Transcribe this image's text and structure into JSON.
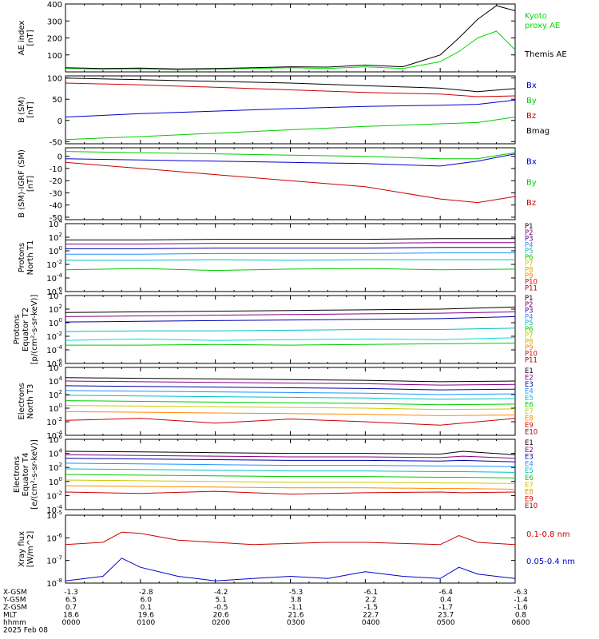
{
  "chart_data": [
    {
      "type": "line",
      "ylabel": "AE index [nT]",
      "ylim": [
        0,
        400
      ],
      "yticks": [
        100,
        200,
        300,
        400
      ],
      "x": [
        0,
        0.5,
        1,
        1.5,
        2,
        2.5,
        3,
        3.5,
        4,
        4.5,
        5,
        5.25,
        5.5,
        5.75,
        6
      ],
      "series": [
        {
          "name": "Kyoto proxy AE",
          "color": "#00dd00",
          "values": [
            20,
            15,
            18,
            12,
            15,
            20,
            25,
            20,
            30,
            20,
            60,
            120,
            200,
            240,
            130
          ]
        },
        {
          "name": "Themis AE",
          "color": "#000000",
          "values": [
            25,
            20,
            22,
            18,
            20,
            25,
            30,
            28,
            40,
            30,
            100,
            200,
            310,
            390,
            360
          ]
        }
      ]
    },
    {
      "type": "line",
      "ylabel": "B (SM) [nT]",
      "ylim": [
        -55,
        105
      ],
      "yticks": [
        -50,
        0,
        50,
        100
      ],
      "x": [
        0,
        1,
        2,
        3,
        4,
        5,
        5.5,
        6
      ],
      "series": [
        {
          "name": "Bx",
          "color": "#0000cc",
          "values": [
            8,
            16,
            22,
            28,
            33,
            36,
            38,
            48
          ]
        },
        {
          "name": "By",
          "color": "#00cc00",
          "values": [
            -45,
            -38,
            -30,
            -22,
            -14,
            -8,
            -5,
            8
          ]
        },
        {
          "name": "Bz",
          "color": "#cc0000",
          "values": [
            88,
            84,
            78,
            72,
            66,
            62,
            56,
            58
          ]
        },
        {
          "name": "Bmag",
          "color": "#000000",
          "values": [
            100,
            96,
            92,
            88,
            82,
            76,
            68,
            75
          ]
        }
      ]
    },
    {
      "type": "line",
      "ylabel": "B (SM)-IGRF (SM) [nT]",
      "ylim": [
        -52,
        7
      ],
      "yticks": [
        -50,
        -40,
        -30,
        -20,
        -10,
        0
      ],
      "x": [
        0,
        1,
        2,
        3,
        4,
        5,
        5.5,
        6
      ],
      "series": [
        {
          "name": "Bx",
          "color": "#0000cc",
          "values": [
            -2,
            -3,
            -4,
            -5,
            -6,
            -8,
            -4,
            2
          ]
        },
        {
          "name": "By",
          "color": "#00cc00",
          "values": [
            4,
            3,
            2,
            1,
            0,
            -2,
            -2,
            3
          ]
        },
        {
          "name": "Bz",
          "color": "#cc0000",
          "values": [
            -5,
            -10,
            -15,
            -20,
            -25,
            -35,
            -38,
            -33
          ]
        }
      ]
    },
    {
      "type": "line",
      "ylabel": "Protons North T1",
      "yscale": "log",
      "ylim_exp": [
        -6,
        4
      ],
      "ytick_exps": [
        -6,
        -4,
        -2,
        0,
        2,
        4
      ],
      "x": [
        0,
        1,
        2,
        3,
        4,
        5,
        6
      ],
      "series": [
        {
          "name": "P1",
          "color": "#000000",
          "exps": [
            1.6,
            1.6,
            1.7,
            1.7,
            1.7,
            1.8,
            1.8
          ]
        },
        {
          "name": "P2",
          "color": "#880088",
          "exps": [
            1.0,
            1.0,
            1.1,
            1.1,
            1.1,
            1.2,
            1.2
          ]
        },
        {
          "name": "P3",
          "color": "#0000aa",
          "exps": [
            0.3,
            0.3,
            0.4,
            0.4,
            0.4,
            0.5,
            0.5
          ]
        },
        {
          "name": "P4",
          "color": "#1e90ff",
          "exps": [
            -0.5,
            -0.5,
            -0.4,
            -0.4,
            -0.4,
            -0.3,
            -0.3
          ]
        },
        {
          "name": "P5",
          "color": "#00bfbf",
          "exps": [
            -1.4,
            -1.4,
            -1.3,
            -1.4,
            -1.3,
            -1.3,
            -1.3
          ]
        },
        {
          "name": "P6",
          "color": "#00cc00",
          "exps": [
            -2.8,
            -2.6,
            -2.9,
            -2.7,
            -2.6,
            -2.8,
            -2.7
          ]
        }
      ]
    },
    {
      "type": "line",
      "ylabel": "Protons Equator T2 [p/(cm²-s-sr-keV)]",
      "yscale": "log",
      "ylim_exp": [
        -6,
        4
      ],
      "ytick_exps": [
        -6,
        -4,
        -2,
        0,
        2,
        4
      ],
      "x": [
        0,
        1,
        2,
        3,
        4,
        5,
        6
      ],
      "series": [
        {
          "name": "P1",
          "color": "#000000",
          "exps": [
            1.5,
            1.6,
            1.7,
            1.8,
            1.9,
            2.0,
            2.3
          ]
        },
        {
          "name": "P2",
          "color": "#880088",
          "exps": [
            0.9,
            1.0,
            1.1,
            1.2,
            1.3,
            1.4,
            1.6
          ]
        },
        {
          "name": "P3",
          "color": "#0000aa",
          "exps": [
            0.1,
            0.2,
            0.3,
            0.4,
            0.5,
            0.6,
            0.9
          ]
        },
        {
          "name": "P4",
          "color": "#00bfbf",
          "exps": [
            -1.3,
            -1.2,
            -1.2,
            -1.1,
            -1.0,
            -1.0,
            -0.8
          ]
        },
        {
          "name": "P5",
          "color": "#00dddd",
          "exps": [
            -2.6,
            -2.4,
            -2.6,
            -2.5,
            -2.4,
            -2.5,
            -2.2
          ]
        },
        {
          "name": "P6",
          "color": "#00cc00",
          "exps": [
            -3.3,
            -3.3,
            -3.2,
            -3.3,
            -3.2,
            -3.1,
            -3.0
          ]
        }
      ]
    },
    {
      "type": "line",
      "ylabel": "Electrons North T3",
      "yscale": "log",
      "ylim_exp": [
        -4,
        6
      ],
      "ytick_exps": [
        -4,
        -2,
        0,
        2,
        4,
        6
      ],
      "x": [
        0,
        1,
        2,
        3,
        4,
        5,
        6
      ],
      "series": [
        {
          "name": "E1",
          "color": "#000000",
          "exps": [
            4.5,
            4.4,
            4.3,
            4.2,
            4.1,
            3.9,
            4.0
          ]
        },
        {
          "name": "E2",
          "color": "#880088",
          "exps": [
            4.0,
            3.9,
            3.8,
            3.7,
            3.6,
            3.4,
            3.5
          ]
        },
        {
          "name": "E3",
          "color": "#0000aa",
          "exps": [
            3.3,
            3.2,
            3.1,
            3.0,
            2.9,
            2.7,
            2.8
          ]
        },
        {
          "name": "E4",
          "color": "#1e90ff",
          "exps": [
            2.6,
            2.5,
            2.4,
            2.3,
            2.2,
            2.0,
            2.1
          ]
        },
        {
          "name": "E5",
          "color": "#00bfbf",
          "exps": [
            1.9,
            1.8,
            1.7,
            1.6,
            1.5,
            1.3,
            1.4
          ]
        },
        {
          "name": "E6",
          "color": "#00cc00",
          "exps": [
            1.1,
            1.0,
            0.9,
            0.8,
            0.7,
            0.5,
            0.6
          ]
        },
        {
          "name": "E7",
          "color": "#cccc00",
          "exps": [
            0.4,
            0.3,
            0.2,
            0.1,
            0.0,
            -0.2,
            -0.1
          ]
        },
        {
          "name": "E8",
          "color": "#ff8800",
          "exps": [
            -0.5,
            -0.6,
            -0.7,
            -0.8,
            -0.9,
            -1.1,
            -1.0
          ]
        },
        {
          "name": "E9",
          "color": "#cc0000",
          "exps": [
            -1.8,
            -1.5,
            -2.2,
            -1.6,
            -2.0,
            -2.5,
            -1.5
          ]
        }
      ]
    },
    {
      "type": "line",
      "ylabel": "Electrons Equator T4 [e/(cm²-s-sr-keV)]",
      "yscale": "log",
      "ylim_exp": [
        -4,
        6
      ],
      "ytick_exps": [
        -4,
        -2,
        0,
        2,
        4,
        6
      ],
      "x": [
        0,
        1,
        2,
        3,
        4,
        5,
        5.3,
        6
      ],
      "series": [
        {
          "name": "E1",
          "color": "#000000",
          "exps": [
            4.3,
            4.2,
            4.1,
            4.0,
            4.0,
            3.9,
            4.3,
            3.8
          ]
        },
        {
          "name": "E2",
          "color": "#880088",
          "exps": [
            3.8,
            3.7,
            3.6,
            3.5,
            3.5,
            3.4,
            3.6,
            3.3
          ]
        },
        {
          "name": "E3",
          "color": "#0000aa",
          "exps": [
            3.3,
            3.2,
            3.1,
            3.0,
            3.0,
            2.9,
            3.0,
            2.8
          ]
        },
        {
          "name": "E4",
          "color": "#1e90ff",
          "exps": [
            2.6,
            2.5,
            2.4,
            2.3,
            2.3,
            2.2,
            2.2,
            2.1
          ]
        },
        {
          "name": "E5",
          "color": "#00bfbf",
          "exps": [
            1.8,
            1.7,
            1.6,
            1.5,
            1.5,
            1.4,
            1.4,
            1.3
          ]
        },
        {
          "name": "E6",
          "color": "#00cc00",
          "exps": [
            1.0,
            0.9,
            0.8,
            0.7,
            0.7,
            0.6,
            0.6,
            0.5
          ]
        },
        {
          "name": "E7",
          "color": "#cccc00",
          "exps": [
            0.2,
            0.1,
            0.0,
            -0.1,
            -0.1,
            -0.2,
            -0.2,
            -0.3
          ]
        },
        {
          "name": "E8",
          "color": "#ff8800",
          "exps": [
            -0.6,
            -0.7,
            -0.8,
            -0.9,
            -0.9,
            -1.0,
            -1.0,
            -1.1
          ]
        },
        {
          "name": "E9",
          "color": "#cc0000",
          "exps": [
            -1.5,
            -1.7,
            -1.4,
            -1.8,
            -1.6,
            -1.5,
            -1.6,
            -1.5
          ]
        }
      ]
    },
    {
      "type": "line",
      "ylabel": "Xray flux [W/m^2]",
      "yscale": "log",
      "ylim_exp": [
        -8,
        -5
      ],
      "ytick_exps": [
        -8,
        -7,
        -6,
        -5
      ],
      "x": [
        0,
        0.5,
        0.75,
        1.0,
        1.5,
        2,
        2.5,
        3,
        3.5,
        4,
        4.5,
        5,
        5.25,
        5.5,
        6
      ],
      "series": [
        {
          "name": "0.1-0.8 nm",
          "color": "#cc0000",
          "exps": [
            -6.3,
            -6.2,
            -5.75,
            -5.8,
            -6.1,
            -6.2,
            -6.3,
            -6.25,
            -6.2,
            -6.2,
            -6.25,
            -6.3,
            -5.9,
            -6.2,
            -6.3
          ]
        },
        {
          "name": "0.05-0.4 nm",
          "color": "#0000cc",
          "exps": [
            -7.9,
            -7.7,
            -6.9,
            -7.3,
            -7.7,
            -7.9,
            -7.8,
            -7.7,
            -7.8,
            -7.5,
            -7.7,
            -7.8,
            -7.3,
            -7.6,
            -7.8
          ]
        }
      ]
    }
  ],
  "labels": {
    "ae": {
      "y1": "AE index",
      "y2": "[nT]",
      "legend": [
        "Kyoto",
        "proxy AE",
        "Themis AE"
      ]
    },
    "bsm": {
      "y1": "B (SM)",
      "y2": "[nT]",
      "legend": [
        "Bx",
        "By",
        "Bz",
        "Bmag"
      ]
    },
    "bdiff": {
      "y1": "B (SM)-IGRF (SM)",
      "y2": "[nT]",
      "legend": [
        "Bx",
        "By",
        "Bz"
      ]
    },
    "pn": {
      "y1": "Protons",
      "y2": "North T1",
      "legend": [
        "P1",
        "P2",
        "P3",
        "P4",
        "P5",
        "P6",
        "P7",
        "P8",
        "P9",
        "P10",
        "P11"
      ]
    },
    "pe": {
      "y1": "Protons",
      "y2": "Equator T2",
      "y3": "[p/(cm²-s-sr-keV)]",
      "legend": [
        "P1",
        "P2",
        "P3",
        "P4",
        "P5",
        "P6",
        "P7",
        "P8",
        "P9",
        "P10",
        "P11"
      ]
    },
    "en": {
      "y1": "Electrons",
      "y2": "North T3",
      "legend": [
        "E1",
        "E2",
        "E3",
        "E4",
        "E5",
        "E6",
        "E7",
        "E8",
        "E9",
        "E10"
      ]
    },
    "ee": {
      "y1": "Electrons",
      "y2": "Equator T4",
      "y3": "[e/(cm²-s-sr-keV)]",
      "legend": [
        "E1",
        "E2",
        "E3",
        "E4",
        "E5",
        "E6",
        "E7",
        "E8",
        "E9",
        "E10"
      ]
    },
    "xr": {
      "y1": "Xray flux",
      "y2": "[W/m^2]",
      "legend": [
        "0.1-0.8 nm",
        "0.05-0.4 nm"
      ]
    }
  },
  "legend_colors": {
    "P": [
      "#000000",
      "#880088",
      "#440088",
      "#1e90ff",
      "#00bfbf",
      "#00cc00",
      "#cccc00",
      "#ddaa00",
      "#ff8800",
      "#dd0000",
      "#aa0000"
    ],
    "E": [
      "#000000",
      "#880088",
      "#0000aa",
      "#1e90ff",
      "#00bfbf",
      "#00cc00",
      "#cccc00",
      "#ff8800",
      "#dd0000",
      "#aa0000"
    ]
  },
  "footer": {
    "row_labels": [
      "X-GSM",
      "Y-GSM",
      "Z-GSM",
      "MLT",
      "hhmm",
      "2025 Feb 08"
    ],
    "columns": [
      [
        "-1.3",
        "6.5",
        "0.7",
        "18.6",
        "0000"
      ],
      [
        "-2.8",
        "6.0",
        "0.1",
        "19.6",
        "0100"
      ],
      [
        "-4.2",
        "5.1",
        "-0.5",
        "20.6",
        "0200"
      ],
      [
        "-5.3",
        "3.8",
        "-1.1",
        "21.6",
        "0300"
      ],
      [
        "-6.1",
        "2.2",
        "-1.5",
        "22.7",
        "0400"
      ],
      [
        "-6.4",
        "0.4",
        "-1.7",
        "23.7",
        "0500"
      ],
      [
        "-6.3",
        "-1.4",
        "-1.6",
        "0.8",
        "0600"
      ]
    ]
  }
}
